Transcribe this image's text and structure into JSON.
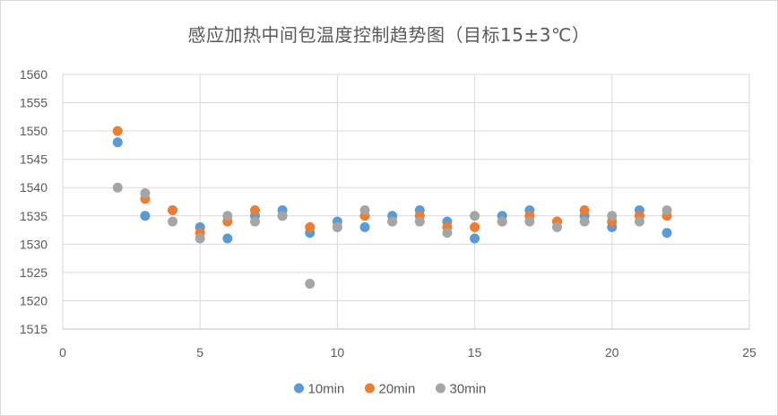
{
  "chart_data": {
    "type": "scatter",
    "title": "感应加热中间包温度控制趋势图（目标15±3℃）",
    "xlabel": "",
    "ylabel": "",
    "xlim": [
      0,
      25
    ],
    "ylim": [
      1515,
      1560
    ],
    "x_ticks": [
      0,
      5,
      10,
      15,
      20,
      25
    ],
    "y_ticks": [
      1515,
      1520,
      1525,
      1530,
      1535,
      1540,
      1545,
      1550,
      1555,
      1560
    ],
    "grid": "vertical-and-horizontal",
    "legend_position": "bottom",
    "series": [
      {
        "name": "10min",
        "color": "#5b9bd5",
        "points": [
          [
            2,
            1548
          ],
          [
            3,
            1535
          ],
          [
            4,
            1536
          ],
          [
            5,
            1533
          ],
          [
            6,
            1531
          ],
          [
            7,
            1535
          ],
          [
            8,
            1536
          ],
          [
            9,
            1532
          ],
          [
            10,
            1534
          ],
          [
            11,
            1533
          ],
          [
            12,
            1535
          ],
          [
            13,
            1536
          ],
          [
            14,
            1534
          ],
          [
            15,
            1531
          ],
          [
            16,
            1535
          ],
          [
            17,
            1536
          ],
          [
            18,
            1534
          ],
          [
            19,
            1535
          ],
          [
            20,
            1533
          ],
          [
            21,
            1536
          ],
          [
            22,
            1532
          ]
        ]
      },
      {
        "name": "20min",
        "color": "#ed7d31",
        "points": [
          [
            2,
            1550
          ],
          [
            3,
            1538
          ],
          [
            4,
            1536
          ],
          [
            5,
            1532
          ],
          [
            6,
            1534
          ],
          [
            7,
            1536
          ],
          [
            8,
            1535
          ],
          [
            9,
            1533
          ],
          [
            10,
            1533
          ],
          [
            11,
            1535
          ],
          [
            12,
            1534
          ],
          [
            13,
            1535
          ],
          [
            14,
            1533
          ],
          [
            15,
            1533
          ],
          [
            16,
            1534
          ],
          [
            17,
            1535
          ],
          [
            18,
            1534
          ],
          [
            19,
            1536
          ],
          [
            20,
            1534
          ],
          [
            21,
            1535
          ],
          [
            22,
            1535
          ]
        ]
      },
      {
        "name": "30min",
        "color": "#a5a5a5",
        "points": [
          [
            2,
            1540
          ],
          [
            3,
            1539
          ],
          [
            4,
            1534
          ],
          [
            5,
            1531
          ],
          [
            6,
            1535
          ],
          [
            7,
            1534
          ],
          [
            8,
            1535
          ],
          [
            9,
            1523
          ],
          [
            10,
            1533
          ],
          [
            11,
            1536
          ],
          [
            12,
            1534
          ],
          [
            13,
            1534
          ],
          [
            14,
            1532
          ],
          [
            15,
            1535
          ],
          [
            16,
            1534
          ],
          [
            17,
            1534
          ],
          [
            18,
            1533
          ],
          [
            19,
            1534
          ],
          [
            20,
            1535
          ],
          [
            21,
            1534
          ],
          [
            22,
            1536
          ]
        ]
      }
    ]
  }
}
